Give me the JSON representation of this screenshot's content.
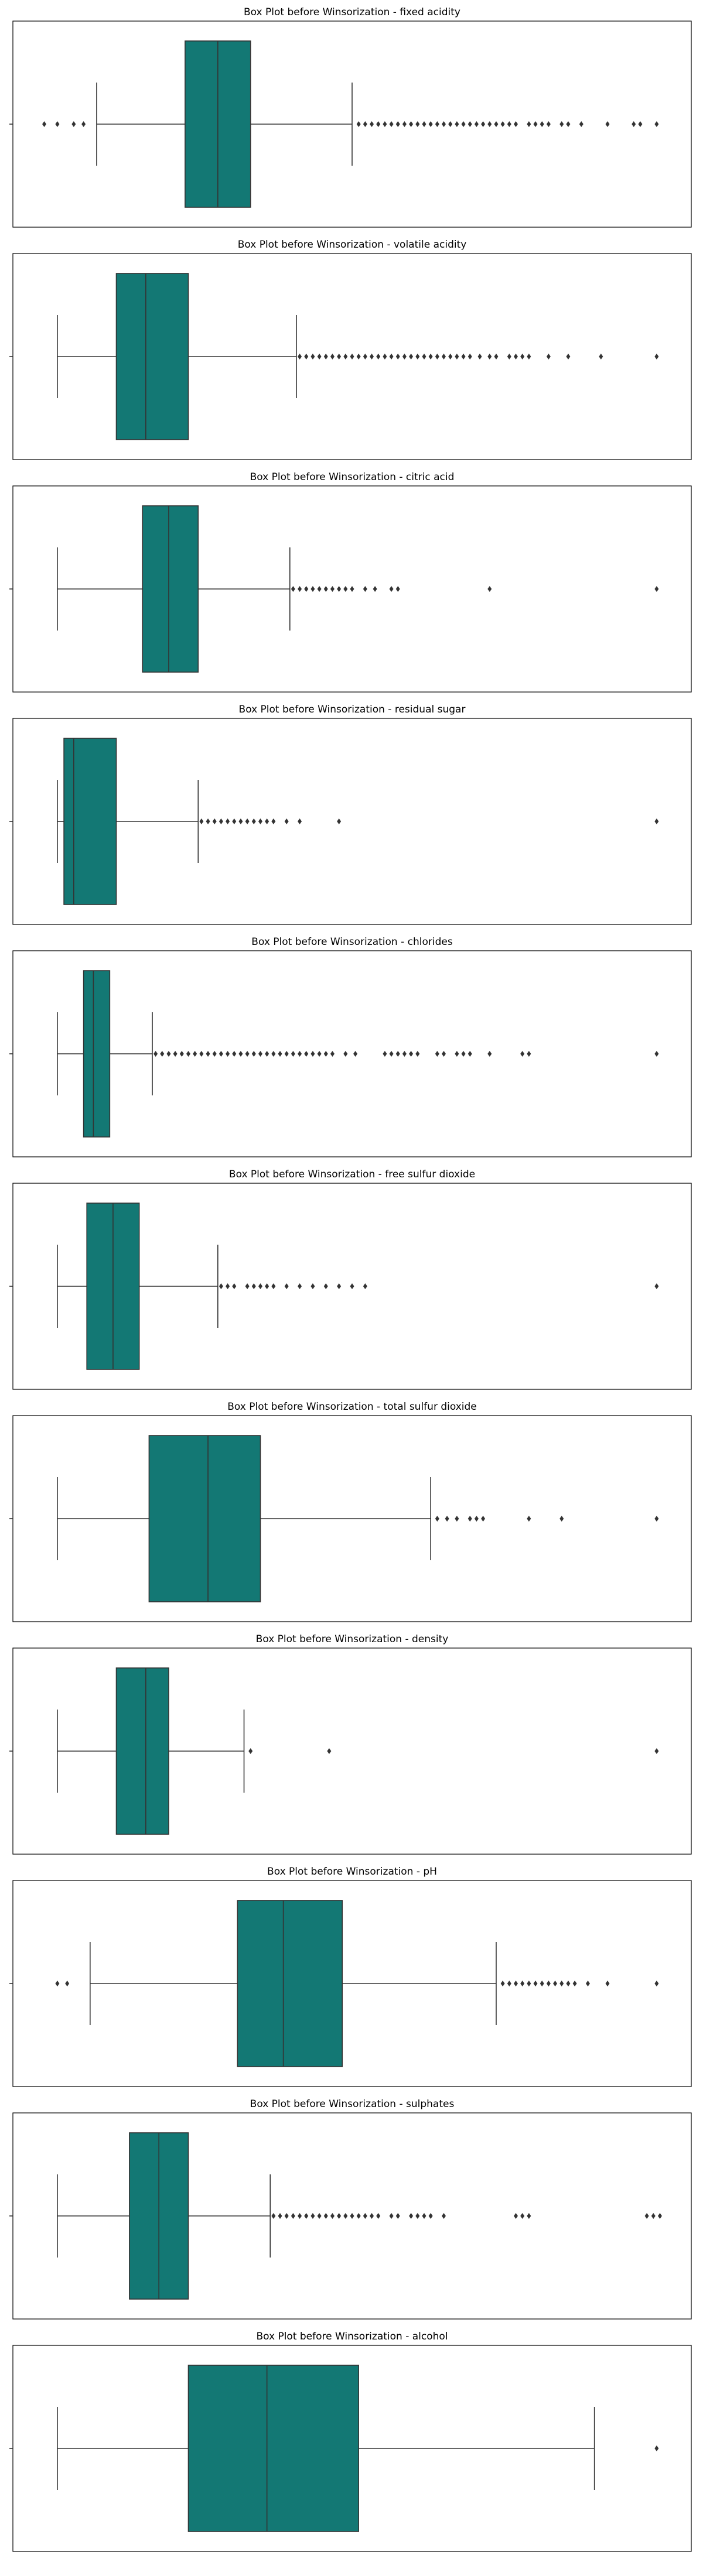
{
  "chart_data": [
    {
      "type": "box",
      "title": "Box Plot before Winsorization - fixed acidity",
      "xlim": [
        0,
        100
      ],
      "whisker_low": 11,
      "q1": 24.5,
      "median": 29.5,
      "q3": 34.5,
      "whisker_high": 50,
      "outliers": [
        3,
        5,
        7.5,
        9,
        51,
        52,
        53,
        54,
        55,
        56,
        57,
        58,
        59,
        60,
        61,
        62,
        63,
        64,
        65,
        66,
        67,
        68,
        69,
        70,
        71,
        72,
        73,
        74,
        75,
        77,
        78,
        79,
        80,
        82,
        83,
        85,
        89,
        93,
        94,
        96.5
      ]
    },
    {
      "type": "box",
      "title": "Box Plot before Winsorization - volatile acidity",
      "xlim": [
        0,
        100
      ],
      "whisker_low": 5,
      "q1": 14,
      "median": 18.5,
      "q3": 25,
      "whisker_high": 41.5,
      "outliers": [
        42,
        43,
        44,
        45,
        46,
        47,
        48,
        49,
        50,
        51,
        52,
        53,
        54,
        55,
        56,
        57,
        58,
        59,
        60,
        61,
        62,
        63,
        64,
        65,
        66,
        67,
        68,
        69.5,
        71,
        72,
        74,
        75,
        76,
        77,
        80,
        83,
        88,
        96.5
      ]
    },
    {
      "type": "box",
      "title": "Box Plot before Winsorization - citric acid",
      "xlim": [
        0,
        100
      ],
      "whisker_low": 5,
      "q1": 18,
      "median": 22,
      "q3": 26.5,
      "whisker_high": 40.5,
      "outliers": [
        41,
        42,
        43,
        44,
        45,
        46,
        47,
        48,
        49,
        50,
        52,
        53.5,
        56,
        57,
        71,
        96.5
      ]
    },
    {
      "type": "box",
      "title": "Box Plot before Winsorization - residual sugar",
      "xlim": [
        0,
        100
      ],
      "whisker_low": 5,
      "q1": 6,
      "median": 7.5,
      "q3": 14,
      "whisker_high": 26.5,
      "outliers": [
        27,
        28,
        29,
        30,
        31,
        32,
        33,
        34,
        35,
        36,
        37,
        38,
        40,
        42,
        48,
        96.5
      ]
    },
    {
      "type": "box",
      "title": "Box Plot before Winsorization - chlorides",
      "xlim": [
        0,
        100
      ],
      "whisker_low": 5,
      "q1": 9,
      "median": 10.5,
      "q3": 13,
      "whisker_high": 19.5,
      "outliers": [
        20,
        21,
        22,
        23,
        24,
        25,
        26,
        27,
        28,
        29,
        30,
        31,
        32,
        33,
        34,
        35,
        36,
        37,
        38,
        39,
        40,
        41,
        42,
        43,
        44,
        45,
        46,
        47,
        49,
        50.5,
        55,
        56,
        57,
        58,
        59,
        60,
        63,
        64,
        66,
        67,
        68,
        71,
        76,
        77,
        96.5
      ]
    },
    {
      "type": "box",
      "title": "Box Plot before Winsorization - free sulfur dioxide",
      "xlim": [
        0,
        100
      ],
      "whisker_low": 5,
      "q1": 9.5,
      "median": 13.5,
      "q3": 17.5,
      "whisker_high": 29.5,
      "outliers": [
        30,
        31,
        32,
        34,
        35,
        36,
        37,
        38,
        40,
        42,
        44,
        46,
        48,
        50,
        52,
        96.5
      ]
    },
    {
      "type": "box",
      "title": "Box Plot before Winsorization - total sulfur dioxide",
      "xlim": [
        0,
        100
      ],
      "whisker_low": 5,
      "q1": 19,
      "median": 28,
      "q3": 36,
      "whisker_high": 62,
      "outliers": [
        63,
        64.5,
        66,
        68,
        69,
        70,
        77,
        82,
        96.5
      ]
    },
    {
      "type": "box",
      "title": "Box Plot before Winsorization - density",
      "xlim": [
        0,
        100
      ],
      "whisker_low": 5,
      "q1": 14,
      "median": 18.5,
      "q3": 22,
      "whisker_high": 33.5,
      "outliers": [
        34.5,
        46.5,
        96.5
      ]
    },
    {
      "type": "box",
      "title": "Box Plot before Winsorization - pH",
      "xlim": [
        0,
        100
      ],
      "whisker_low": 10,
      "q1": 32.5,
      "median": 39.5,
      "q3": 48.5,
      "whisker_high": 72,
      "outliers": [
        5,
        6.5,
        73,
        74,
        75,
        76,
        77,
        78,
        79,
        80,
        81,
        82,
        83,
        84,
        86,
        89,
        96.5
      ]
    },
    {
      "type": "box",
      "title": "Box Plot before Winsorization - sulphates",
      "xlim": [
        0,
        100
      ],
      "whisker_low": 5,
      "q1": 16,
      "median": 20.5,
      "q3": 25,
      "whisker_high": 37.5,
      "outliers": [
        38,
        39,
        40,
        41,
        42,
        43,
        44,
        45,
        46,
        47,
        48,
        49,
        50,
        51,
        52,
        53,
        54,
        56,
        57,
        59,
        60,
        61,
        62,
        64,
        75,
        76,
        77,
        95,
        96,
        97
      ]
    },
    {
      "type": "box",
      "title": "Box Plot before Winsorization - alcohol",
      "xlim": [
        0,
        100
      ],
      "whisker_low": 5,
      "q1": 25,
      "median": 37,
      "q3": 51,
      "whisker_high": 87,
      "outliers": [
        96.5
      ]
    }
  ]
}
